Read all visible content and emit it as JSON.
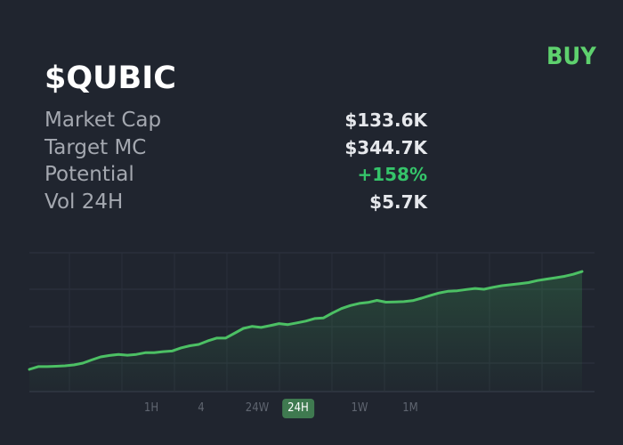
{
  "action": {
    "buy_label": "BUY"
  },
  "token": {
    "ticker": "$QUBIC"
  },
  "stats": [
    {
      "label": "Market Cap",
      "value": "$133.6K",
      "tone": "neutral"
    },
    {
      "label": "Target MC",
      "value": "$344.7K",
      "tone": "neutral"
    },
    {
      "label": "Potential",
      "value": "+158%",
      "tone": "positive"
    },
    {
      "label": "Vol 24H",
      "value": "$5.7K",
      "tone": "neutral"
    }
  ],
  "timeframes": {
    "items": [
      "1H",
      "4",
      "24W",
      "24H",
      "1W",
      "1M"
    ],
    "selected": "24H"
  },
  "colors": {
    "background": "#20252f",
    "accent": "#5ed16e",
    "positive": "#35c46a",
    "line": "#4cc064",
    "active_timeframe": "#3f7a50"
  },
  "chart_data": {
    "type": "area",
    "title": "",
    "xlabel": "",
    "ylabel": "",
    "grid": true,
    "ylim": [
      0,
      100
    ],
    "x": [
      0,
      1,
      2,
      3,
      4,
      5,
      6,
      7,
      8,
      9,
      10,
      11,
      12,
      13,
      14,
      15,
      16,
      17,
      18,
      19,
      20,
      21,
      22,
      23,
      24,
      25,
      26,
      27,
      28,
      29,
      30,
      31,
      32,
      33,
      34,
      35,
      36,
      37,
      38,
      39,
      40,
      41,
      42,
      43,
      44,
      45,
      46,
      47,
      48,
      49,
      50,
      51,
      52,
      53,
      54,
      55,
      56,
      57,
      58,
      59,
      60,
      61,
      62
    ],
    "series": [
      {
        "values": [
          16,
          18,
          18,
          18.3,
          18.6,
          19.2,
          20.5,
          22.8,
          25,
          26,
          26.8,
          26.2,
          26.8,
          28,
          28,
          28.8,
          29.2,
          31.5,
          33,
          34,
          36.5,
          38.5,
          38.5,
          42,
          45.5,
          47,
          46.2,
          47.5,
          49,
          48.3,
          49.5,
          50.8,
          52.6,
          53.1,
          56.6,
          59.8,
          62,
          63.5,
          64.2,
          65.7,
          64.4,
          64.6,
          64.8,
          65.5,
          67.3,
          69.3,
          71.1,
          72.3,
          72.6,
          73.5,
          74.3,
          73.7,
          75.1,
          76.3,
          77,
          77.7,
          78.5,
          80,
          81,
          82,
          83,
          84.5,
          86.5
        ]
      }
    ]
  }
}
